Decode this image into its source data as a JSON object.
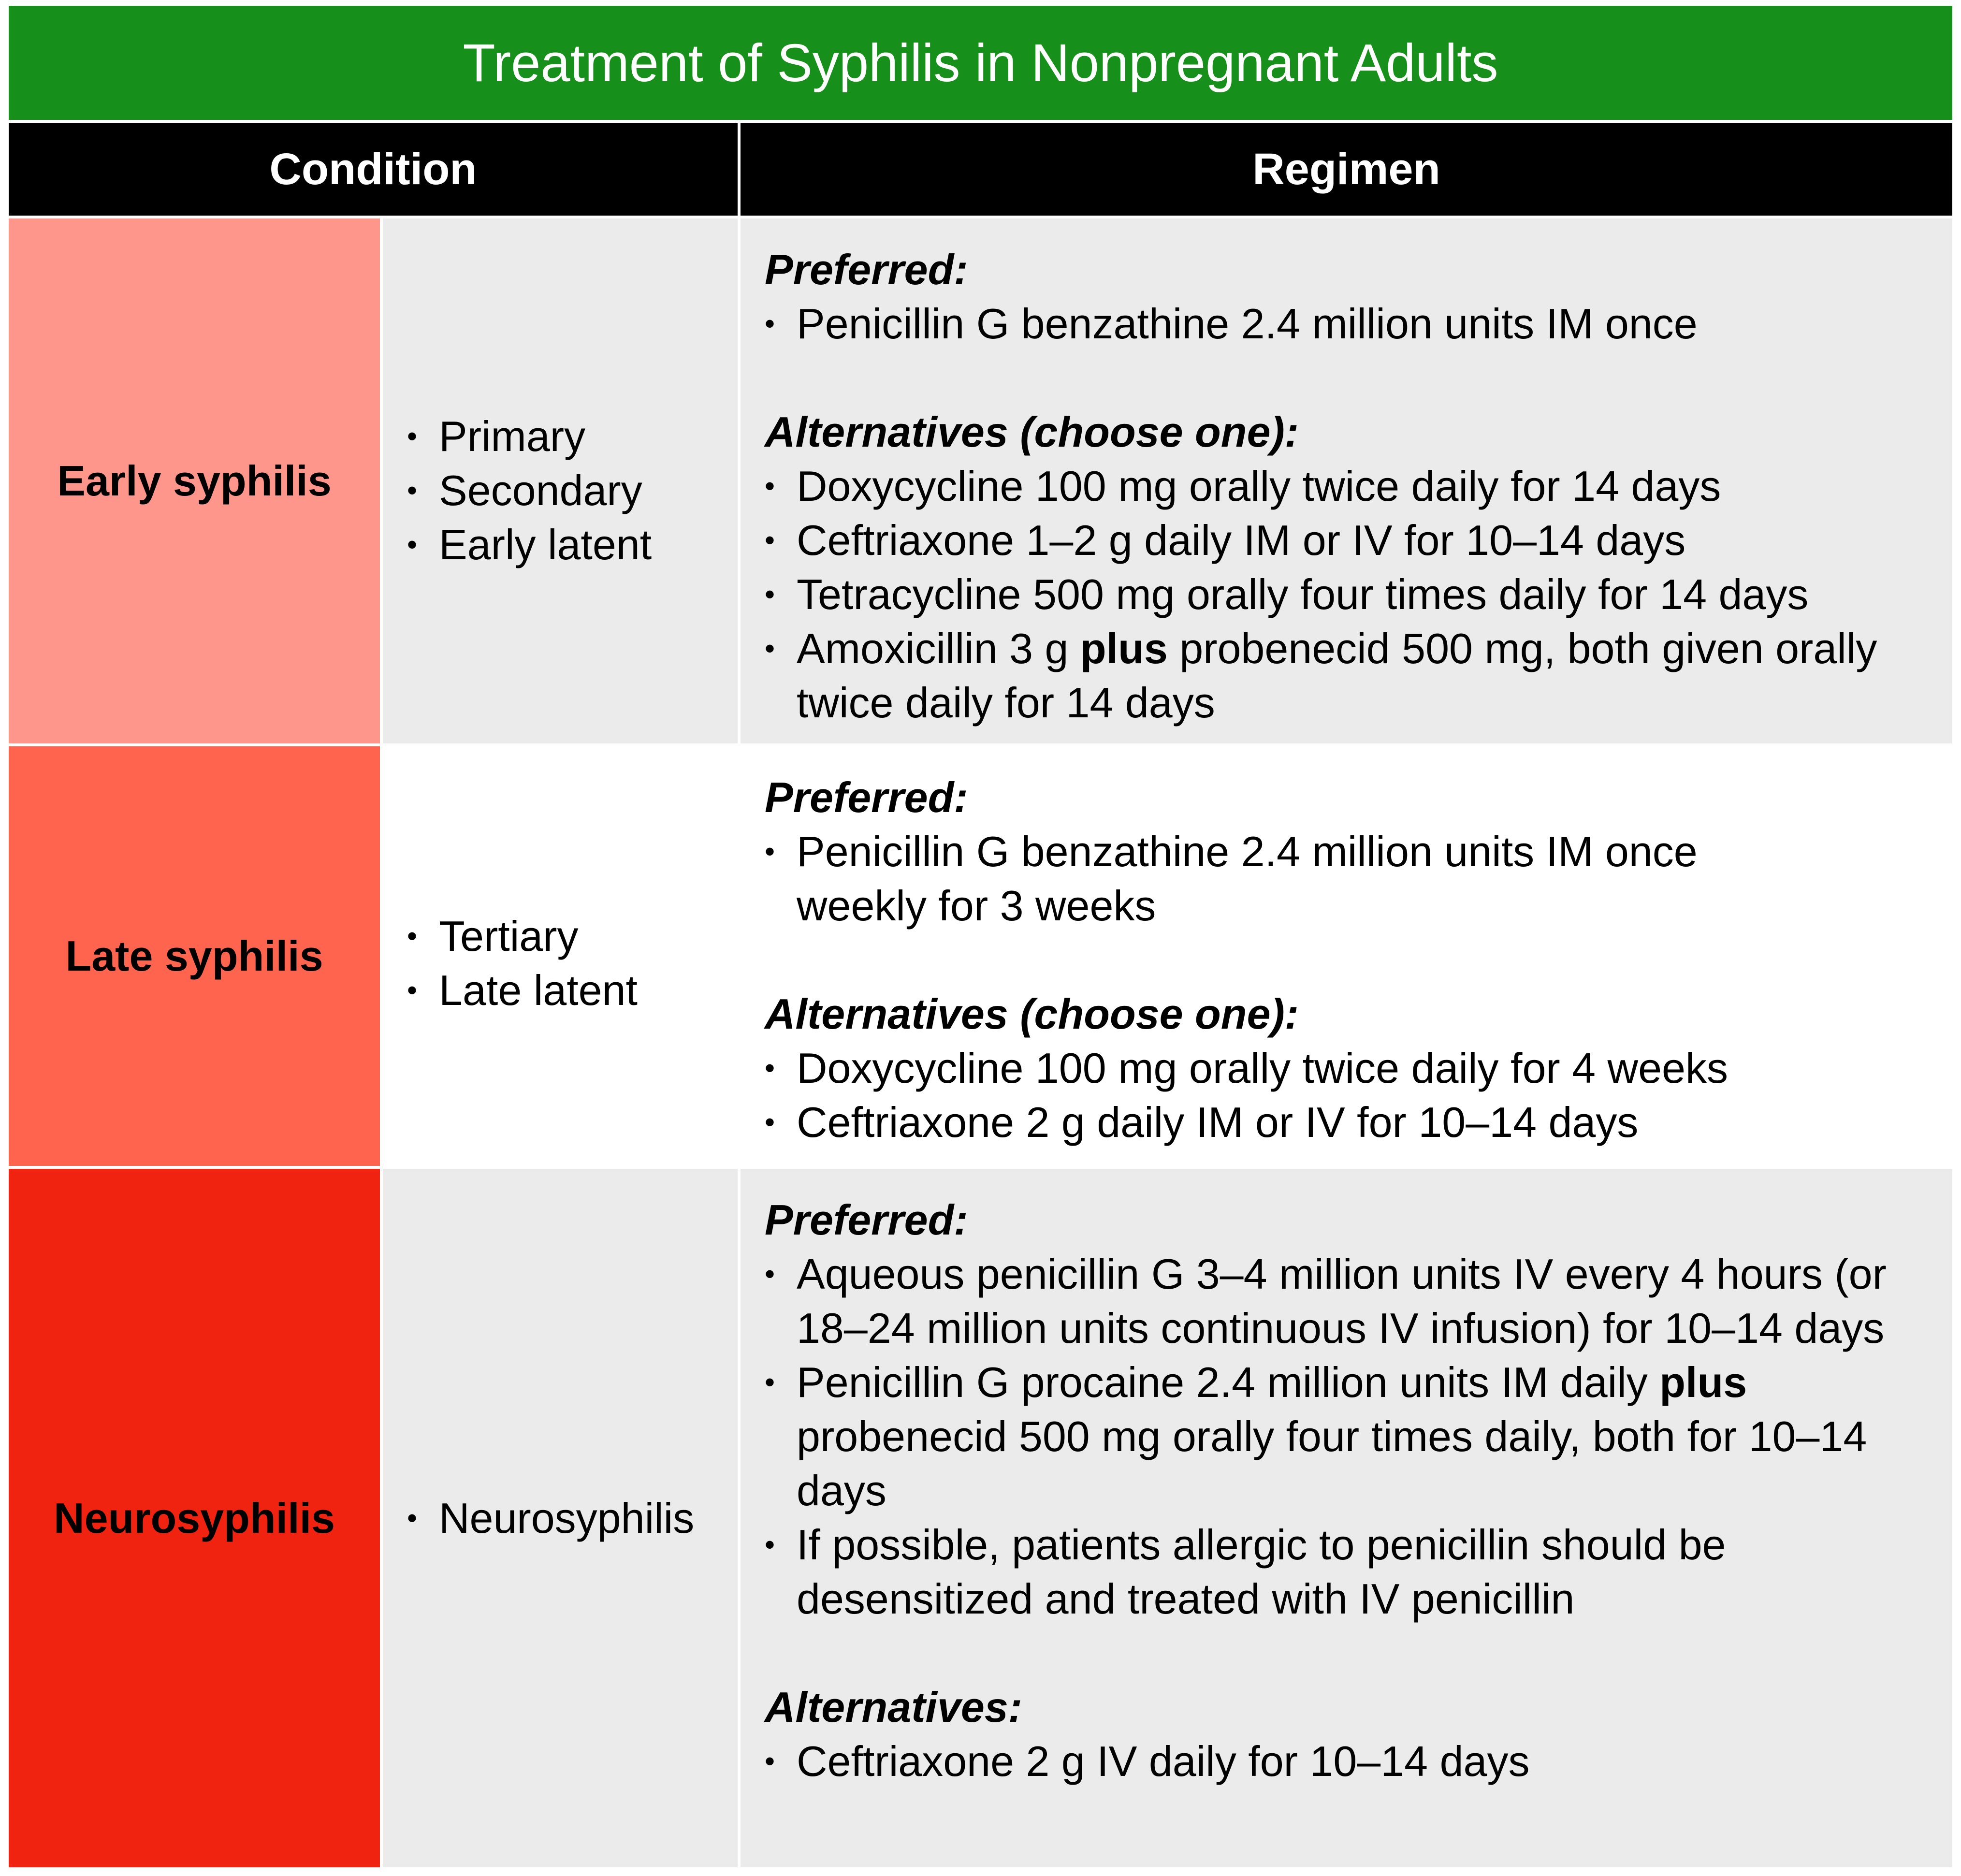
{
  "title": "Treatment of Syphilis in Nonpregnant Adults",
  "headers": {
    "condition": "Condition",
    "regimen": "Regimen"
  },
  "colors": {
    "title_bar": "#16901a",
    "header_bar": "#000000",
    "early": "#ff968c",
    "late": "#ff644e",
    "neuro": "#ef230f",
    "row_grey": "#ebebeb"
  },
  "rows": [
    {
      "name": "Early syphilis",
      "types": [
        "Primary",
        "Secondary",
        "Early latent"
      ],
      "preferred_label": "Preferred:",
      "preferred": [
        "Penicillin G benzathine 2.4 million units IM once"
      ],
      "alternatives_label": "Alternatives (choose one):",
      "alternatives": [
        "Doxycycline 100 mg orally twice daily for 14 days",
        "Ceftriaxone 1–2 g daily IM or IV for 10–14 days",
        "Tetracycline 500 mg orally four times daily for 14 days"
      ],
      "alt4_a": "Amoxicillin 3 g ",
      "alt4_plus": "plus",
      "alt4_b": " probenecid 500 mg, both given orally twice daily for 14 days"
    },
    {
      "name": "Late syphilis",
      "types": [
        "Tertiary",
        "Late latent"
      ],
      "preferred_label": "Preferred:",
      "preferred": [
        "Penicillin G benzathine 2.4 million units IM once weekly for 3 weeks"
      ],
      "alternatives_label": "Alternatives (choose one):",
      "alternatives": [
        "Doxycycline 100 mg orally twice daily for 4 weeks",
        "Ceftriaxone 2 g daily IM or IV for 10–14 days"
      ]
    },
    {
      "name": "Neurosyphilis",
      "types": [
        "Neurosyphilis"
      ],
      "preferred_label": "Preferred:",
      "preferred": [
        "Aqueous penicillin G 3–4 million units IV every 4 hours (or 18–24 million units continuous IV infusion) for 10–14 days"
      ],
      "pref2_a": "Penicillin G procaine 2.4 million units IM daily ",
      "pref2_plus": "plus",
      "pref2_b": " probenecid 500 mg orally four times daily, both for 10–14 days",
      "preferred_3": "If possible, patients allergic to penicillin should be desensitized and treated with IV penicillin",
      "alternatives_label": "Alternatives:",
      "alternatives": [
        "Ceftriaxone 2 g IV daily for 10–14 days"
      ]
    }
  ]
}
